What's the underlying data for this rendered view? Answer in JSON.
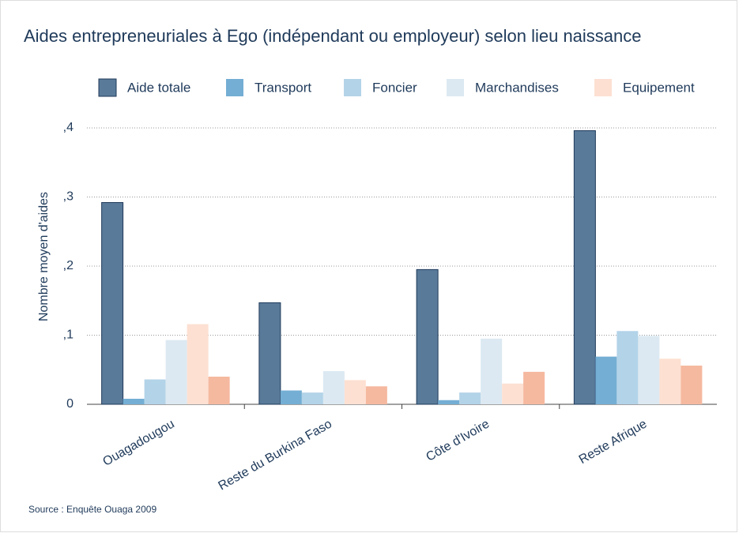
{
  "chart_data": {
    "type": "bar",
    "title": "Aides entrepreneuriales à Ego (indépendant ou employeur) selon lieu naissance",
    "y_label": "Nombre moyen d'aides",
    "source": "Source : Enquête Ouaga 2009",
    "categories": [
      "Ouagadougou",
      "Reste du Burkina Faso",
      "Côte d'Ivoire",
      "Reste Afrique"
    ],
    "series": [
      {
        "name": "Aide totale",
        "color": "#5a7a99",
        "values": [
          0.292,
          0.147,
          0.195,
          0.396
        ]
      },
      {
        "name": "Transport",
        "color": "#74aed4",
        "values": [
          0.008,
          0.02,
          0.006,
          0.069
        ]
      },
      {
        "name": "Foncier",
        "color": "#b3d3e8",
        "values": [
          0.036,
          0.017,
          0.017,
          0.106
        ]
      },
      {
        "name": "Marchandises",
        "color": "#dce9f2",
        "values": [
          0.093,
          0.048,
          0.095,
          0.099
        ]
      },
      {
        "name": "Equipement",
        "color": "#fde0d2",
        "values": [
          0.116,
          0.035,
          0.03,
          0.066
        ]
      },
      {
        "name": null,
        "color": "#f5b9a0",
        "values": [
          0.04,
          0.026,
          0.047,
          0.056
        ]
      }
    ],
    "ylim": [
      0,
      0.4
    ],
    "yticks": [
      0,
      {
        "value": 0.1,
        "label": ",1"
      },
      {
        "value": 0.2,
        "label": ",2"
      },
      {
        "value": 0.3,
        "label": ",3"
      },
      {
        "value": 0.4,
        "label": ",4"
      }
    ],
    "grid": true
  }
}
